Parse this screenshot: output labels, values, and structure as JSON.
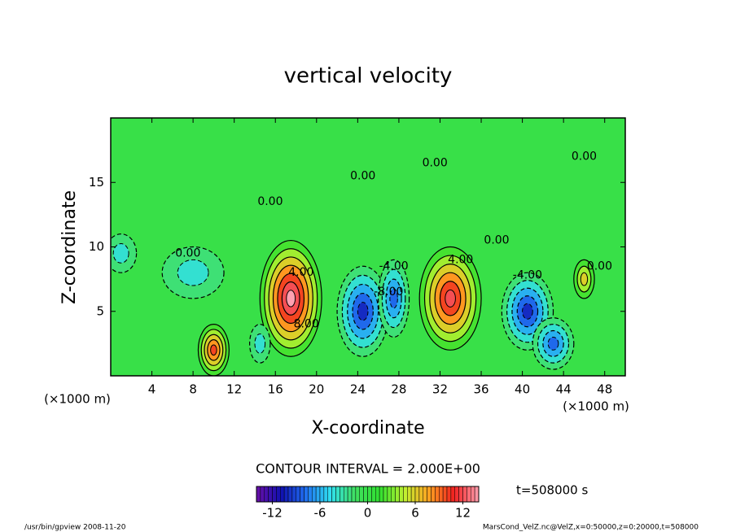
{
  "chart_data": {
    "type": "contour",
    "title": "vertical velocity",
    "x_label": "X-coordinate",
    "y_label": "Z-coordinate",
    "x_unit_label": "(×1000 m)",
    "y_unit_label": "(×1000 m)",
    "xlim": [
      0,
      50
    ],
    "ylim": [
      0,
      20
    ],
    "xticks": [
      4,
      8,
      12,
      16,
      20,
      24,
      28,
      32,
      36,
      40,
      44,
      48
    ],
    "yticks": [
      5,
      10,
      15
    ],
    "contour_interval": 2,
    "contour_interval_label": "CONTOUR INTERVAL = 2.000E+00",
    "clim": [
      -14,
      14
    ],
    "colorbar_ticks": [
      -12,
      -6,
      0,
      6,
      12
    ],
    "colormap": [
      "#6a0fa8",
      "#1010b0",
      "#2070f0",
      "#30e0f0",
      "#40e060",
      "#30e030",
      "#c0f030",
      "#ffa020",
      "#f02020",
      "#ffa0b0"
    ],
    "extrema": [
      {
        "x": 17.5,
        "z": 6,
        "value": 14,
        "rx": 3,
        "rz": 4.5
      },
      {
        "x": 33,
        "z": 6,
        "value": 12,
        "rx": 3,
        "rz": 4
      },
      {
        "x": 10,
        "z": 2,
        "value": 10,
        "rx": 1.5,
        "rz": 2
      },
      {
        "x": 46,
        "z": 7.5,
        "value": 6,
        "rx": 1,
        "rz": 1.5
      },
      {
        "x": 24.5,
        "z": 5,
        "value": -10,
        "rx": 2.5,
        "rz": 3.5
      },
      {
        "x": 27.5,
        "z": 6,
        "value": -8,
        "rx": 1.5,
        "rz": 3
      },
      {
        "x": 40.5,
        "z": 5,
        "value": -10,
        "rx": 2.5,
        "rz": 3
      },
      {
        "x": 43,
        "z": 2.5,
        "value": -8,
        "rx": 2,
        "rz": 2
      },
      {
        "x": 8,
        "z": 8,
        "value": -4,
        "rx": 3,
        "rz": 2
      },
      {
        "x": 1,
        "z": 9.5,
        "value": -4,
        "rx": 1.5,
        "rz": 1.5
      },
      {
        "x": 14.5,
        "z": 2.5,
        "value": -4,
        "rx": 1,
        "rz": 1.5
      }
    ],
    "contour_labels": [
      {
        "x": 7.5,
        "z": 9.5,
        "value": 0,
        "label": "0.00"
      },
      {
        "x": 15.5,
        "z": 13.5,
        "value": 0,
        "label": "0.00"
      },
      {
        "x": 24.5,
        "z": 15.5,
        "value": 0,
        "label": "0.00"
      },
      {
        "x": 31.5,
        "z": 16.5,
        "value": 0,
        "label": "0.00"
      },
      {
        "x": 37.5,
        "z": 10.5,
        "value": 0,
        "label": "0.00"
      },
      {
        "x": 46,
        "z": 17,
        "value": 0,
        "label": "0.00"
      },
      {
        "x": 47.5,
        "z": 8.5,
        "value": 0,
        "label": "0.00"
      },
      {
        "x": 18.5,
        "z": 8,
        "value": 4,
        "label": "4.00"
      },
      {
        "x": 34,
        "z": 9,
        "value": 4,
        "label": "4.00"
      },
      {
        "x": 19,
        "z": 4,
        "value": 8,
        "label": "8.00"
      },
      {
        "x": 27.5,
        "z": 8.5,
        "value": -4,
        "label": "-4.00"
      },
      {
        "x": 40.5,
        "z": 7.8,
        "value": -4,
        "label": "-4.00"
      },
      {
        "x": 27,
        "z": 6.5,
        "value": -8,
        "label": "-8.00"
      }
    ],
    "time_label": "t=508000 s",
    "footer_left": "/usr/bin/gpview  2008-11-20",
    "footer_right": "MarsCond_VelZ.nc@VelZ,x=0:50000,z=0:20000,t=508000"
  }
}
